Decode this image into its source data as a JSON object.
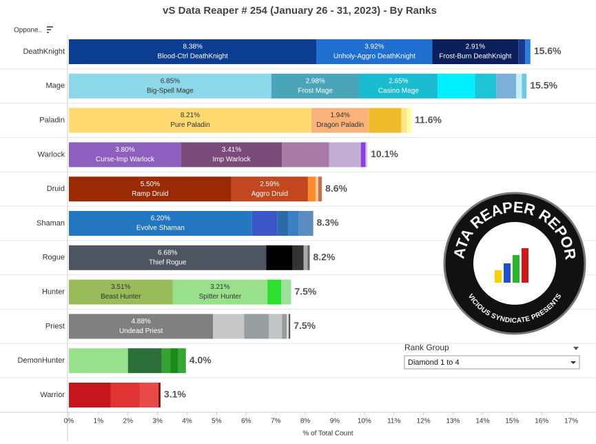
{
  "chart_data": {
    "type": "stacked-bar-horizontal",
    "title": "vS Data Reaper #  254 (January 26 - 31, 2023) - By Ranks",
    "row_header": "Oppone..",
    "x_label": "% of Total Count",
    "xlim": [
      0,
      17
    ],
    "xticks": [
      {
        "value": 0,
        "label": "0%"
      },
      {
        "value": 1,
        "label": "1%"
      },
      {
        "value": 2,
        "label": "2%"
      },
      {
        "value": 3,
        "label": "3%"
      },
      {
        "value": 4,
        "label": "4%"
      },
      {
        "value": 5,
        "label": "5%"
      },
      {
        "value": 6,
        "label": "6%"
      },
      {
        "value": 7,
        "label": "7%"
      },
      {
        "value": 8,
        "label": "8%"
      },
      {
        "value": 9,
        "label": "9%"
      },
      {
        "value": 10,
        "label": "10%"
      },
      {
        "value": 11,
        "label": "11%"
      },
      {
        "value": 12,
        "label": "12%"
      },
      {
        "value": 13,
        "label": "13%"
      },
      {
        "value": 14,
        "label": "14%"
      },
      {
        "value": 15,
        "label": "15%"
      },
      {
        "value": 16,
        "label": "16%"
      },
      {
        "value": 17,
        "label": "17%"
      }
    ],
    "bars": [
      {
        "category": "DeathKnight",
        "total": 15.6,
        "total_label": "15.6%",
        "segments": [
          {
            "name": "Blood-Ctrl DeathKnight",
            "value": 8.38,
            "value_label": "8.38%",
            "color": "#0b3d91"
          },
          {
            "name": "Unholy-Aggro DeathKnight",
            "value": 3.92,
            "value_label": "3.92%",
            "color": "#1f6fd1"
          },
          {
            "name": "Frost-Burn DeathKnight",
            "value": 2.91,
            "value_label": "2.91%",
            "color": "#0a1f5c"
          },
          {
            "value": 0.23,
            "color": "#1a3a8f"
          },
          {
            "value": 0.18,
            "color": "#2b7de0"
          }
        ]
      },
      {
        "category": "Mage",
        "total": 15.5,
        "total_label": "15.5%",
        "segments": [
          {
            "name": "Big-Spell Mage",
            "value": 6.85,
            "value_label": "6.85%",
            "color": "#8dd8e8"
          },
          {
            "name": "Frost Mage",
            "value": 2.98,
            "value_label": "2.98%",
            "color": "#4aa5b8"
          },
          {
            "name": "Casino Mage",
            "value": 2.65,
            "value_label": "2.65%",
            "color": "#1bbccf"
          },
          {
            "value": 1.26,
            "color": "#00f0ff"
          },
          {
            "value": 0.72,
            "color": "#1cc4d4"
          },
          {
            "value": 0.68,
            "color": "#7bb0d8"
          },
          {
            "value": 0.19,
            "color": "#c8eef6"
          },
          {
            "value": 0.16,
            "color": "#6fc8e0"
          }
        ]
      },
      {
        "category": "Paladin",
        "total": 11.6,
        "total_label": "11.6%",
        "segments": [
          {
            "name": "Pure Paladin",
            "value": 8.21,
            "value_label": "8.21%",
            "color": "#fdd96f"
          },
          {
            "name": "Dragon Paladin",
            "value": 1.94,
            "value_label": "1.94%",
            "color": "#f8b27a"
          },
          {
            "value": 1.1,
            "color": "#f0bc2c"
          },
          {
            "value": 0.19,
            "color": "#ffe38a"
          },
          {
            "value": 0.15,
            "color": "#ffff9a"
          }
        ]
      },
      {
        "category": "Warlock",
        "total": 10.1,
        "total_label": "10.1%",
        "segments": [
          {
            "name": "Curse-Imp Warlock",
            "value": 3.8,
            "value_label": "3.80%",
            "color": "#8d5fbf"
          },
          {
            "name": "Imp Warlock",
            "value": 3.41,
            "value_label": "3.41%",
            "color": "#7a4a78"
          },
          {
            "value": 1.6,
            "color": "#a87aa4"
          },
          {
            "value": 1.07,
            "color": "#c3aed6"
          },
          {
            "value": 0.16,
            "color": "#8e3ee8"
          },
          {
            "value": 0.06,
            "color": "#d6cbe6"
          }
        ]
      },
      {
        "category": "Druid",
        "total": 8.6,
        "total_label": "8.6%",
        "segments": [
          {
            "name": "Ramp Druid",
            "value": 5.5,
            "value_label": "5.50%",
            "color": "#9a2a06"
          },
          {
            "name": "Aggro Druid",
            "value": 2.59,
            "value_label": "2.59%",
            "color": "#c2471f"
          },
          {
            "value": 0.26,
            "color": "#ff8c2a"
          },
          {
            "value": 0.09,
            "color": "#f4c9a0"
          },
          {
            "value": 0.12,
            "color": "#c7704a"
          }
        ]
      },
      {
        "category": "Shaman",
        "total": 8.3,
        "total_label": "8.3%",
        "segments": [
          {
            "name": "Evolve Shaman",
            "value": 6.2,
            "value_label": "6.20%",
            "color": "#2277c0"
          },
          {
            "value": 0.86,
            "color": "#3c56c9"
          },
          {
            "value": 0.37,
            "color": "#2d6aa8"
          },
          {
            "value": 0.35,
            "color": "#3a80c4"
          },
          {
            "value": 0.49,
            "color": "#5a8cc0"
          }
        ]
      },
      {
        "category": "Rogue",
        "total": 8.2,
        "total_label": "8.2%",
        "segments": [
          {
            "name": "Thief Rogue",
            "value": 6.68,
            "value_label": "6.68%",
            "color": "#4d5560"
          },
          {
            "value": 0.89,
            "color": "#000000"
          },
          {
            "value": 0.37,
            "color": "#333333"
          },
          {
            "value": 0.14,
            "color": "#aaaaaa"
          },
          {
            "value": 0.07,
            "color": "#666666"
          }
        ]
      },
      {
        "category": "Hunter",
        "total": 7.5,
        "total_label": "7.5%",
        "segments": [
          {
            "name": "Beast Hunter",
            "value": 3.51,
            "value_label": "3.51%",
            "color": "#99bb5a"
          },
          {
            "name": "Spitter Hunter",
            "value": 3.21,
            "value_label": "3.21%",
            "color": "#98e08c"
          },
          {
            "value": 0.47,
            "color": "#2de02d"
          },
          {
            "value": 0.33,
            "color": "#9ce09c"
          }
        ]
      },
      {
        "category": "Priest",
        "total": 7.5,
        "total_label": "7.5%",
        "segments": [
          {
            "name": "Undead Priest",
            "value": 4.88,
            "value_label": "4.88%",
            "color": "#808080"
          },
          {
            "value": 1.05,
            "color": "#c8c8c8"
          },
          {
            "value": 0.84,
            "color": "#979fa0"
          },
          {
            "value": 0.44,
            "color": "#c0c6c8"
          },
          {
            "value": 0.16,
            "color": "#9a9a9a"
          },
          {
            "value": 0.07,
            "color": "#dcdcdc"
          },
          {
            "value": 0.05,
            "color": "#555555"
          }
        ]
      },
      {
        "category": "DemonHunter",
        "total": 4.0,
        "total_label": "4.0%",
        "segments": [
          {
            "value": 2.0,
            "color": "#98e08c"
          },
          {
            "value": 1.14,
            "color": "#2a6e3a"
          },
          {
            "value": 0.3,
            "color": "#35a235"
          },
          {
            "value": 0.26,
            "color": "#1a8a1a"
          },
          {
            "value": 0.26,
            "color": "#36a836"
          }
        ]
      },
      {
        "category": "Warrior",
        "total": 3.1,
        "total_label": "3.1%",
        "segments": [
          {
            "value": 1.42,
            "color": "#c4161c"
          },
          {
            "value": 0.98,
            "color": "#e03434"
          },
          {
            "value": 0.63,
            "color": "#e84a4a"
          },
          {
            "value": 0.07,
            "color": "#8a1010"
          }
        ]
      }
    ]
  },
  "logo": {
    "title": "DATA REAPER REPORT",
    "subtitle": "VICIOUS SYNDICATE PRESENTS"
  },
  "filter": {
    "label": "Rank Group",
    "value": "Diamond 1 to 4"
  }
}
